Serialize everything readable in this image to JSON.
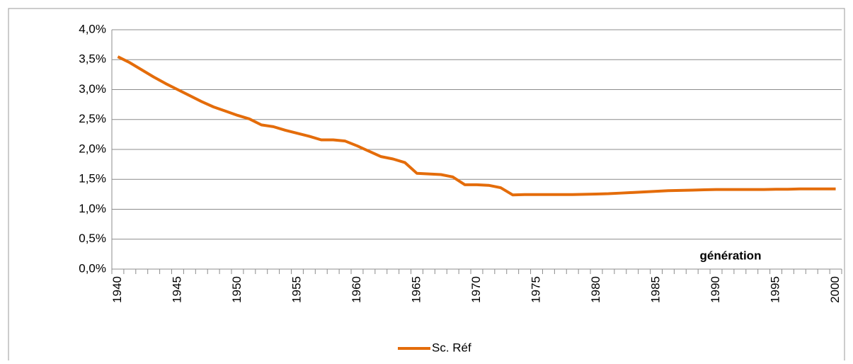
{
  "chart_data": {
    "type": "line",
    "categories": [
      1940,
      null,
      null,
      null,
      null,
      1945,
      null,
      null,
      null,
      null,
      1950,
      null,
      null,
      null,
      null,
      1955,
      null,
      null,
      null,
      null,
      1960,
      null,
      null,
      null,
      null,
      1965,
      null,
      null,
      null,
      null,
      1970,
      null,
      null,
      null,
      null,
      1975,
      null,
      null,
      null,
      null,
      1980,
      null,
      null,
      null,
      null,
      1985,
      null,
      null,
      null,
      null,
      1990,
      null,
      null,
      null,
      null,
      1995,
      null,
      null,
      null,
      null,
      2000
    ],
    "series": [
      {
        "name": "Sc. Réf",
        "color": "#e46c0a",
        "values": [
          3.55,
          3.45,
          3.33,
          3.21,
          3.1,
          3.0,
          2.9,
          2.8,
          2.71,
          2.64,
          2.57,
          2.51,
          2.41,
          2.38,
          2.32,
          2.27,
          2.22,
          2.16,
          2.16,
          2.14,
          2.06,
          1.97,
          1.88,
          1.84,
          1.78,
          1.6,
          1.59,
          1.58,
          1.54,
          1.41,
          1.41,
          1.4,
          1.36,
          1.24,
          1.245,
          1.245,
          1.245,
          1.245,
          1.245,
          1.25,
          1.255,
          1.26,
          1.27,
          1.28,
          1.29,
          1.3,
          1.31,
          1.315,
          1.32,
          1.325,
          1.33,
          1.33,
          1.33,
          1.33,
          1.33,
          1.335,
          1.335,
          1.34,
          1.34,
          1.34,
          1.34
        ]
      }
    ],
    "ylim": [
      0,
      4
    ],
    "yticks": [
      {
        "value": 0,
        "label": "0,0%"
      },
      {
        "value": 0.5,
        "label": "0,5%"
      },
      {
        "value": 1,
        "label": "1,0%"
      },
      {
        "value": 1.5,
        "label": "1,5%"
      },
      {
        "value": 2,
        "label": "2,0%"
      },
      {
        "value": 2.5,
        "label": "2,5%"
      },
      {
        "value": 3,
        "label": "3,0%"
      },
      {
        "value": 3.5,
        "label": "3,5%"
      },
      {
        "value": 4,
        "label": "4,0%"
      }
    ],
    "grid": true,
    "annotation": "génération",
    "legend": "bottom"
  }
}
